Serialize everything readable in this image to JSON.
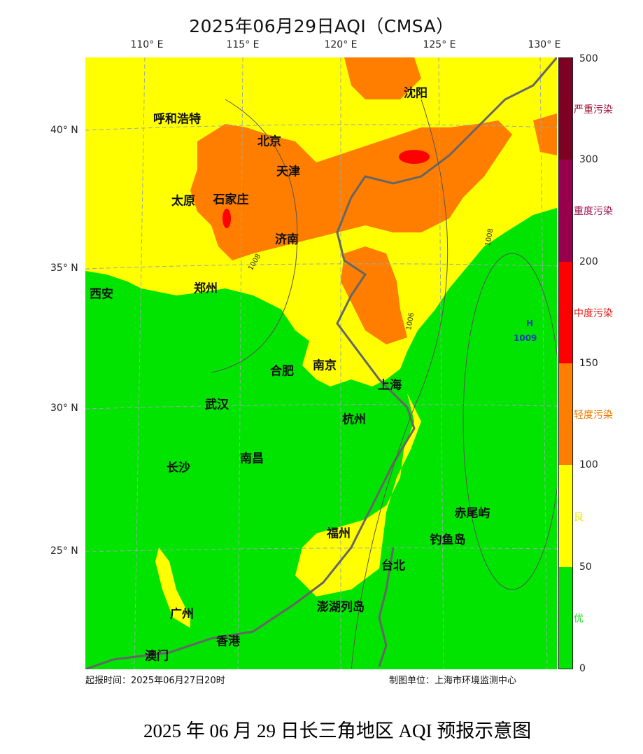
{
  "title": "2025年06月29日AQI（CMSA）",
  "longitude_labels": [
    "110° E",
    "115° E",
    "120° E",
    "125° E",
    "130° E"
  ],
  "latitude_labels": [
    "40° N",
    "35° N",
    "30° N",
    "25° N"
  ],
  "cities": [
    "呼和浩特",
    "北京",
    "天津",
    "太原",
    "石家庄",
    "济南",
    "沈阳",
    "西安",
    "郑州",
    "合肥",
    "南京",
    "上海",
    "武汉",
    "杭州",
    "长沙",
    "南昌",
    "福州",
    "台北",
    "赤尾屿",
    "钓鱼岛",
    "澎湖列岛",
    "广州",
    "香港",
    "澳门"
  ],
  "pressure": {
    "high_marker": "H",
    "high_value": "1009",
    "isobar_labels": [
      "1008",
      "1006",
      "1008"
    ]
  },
  "colorbar": {
    "ticks": [
      "500",
      "300",
      "200",
      "150",
      "100",
      "50",
      "0"
    ],
    "categories": [
      {
        "label": "严重污染",
        "range": [
          300,
          500
        ],
        "color": "#7e0023"
      },
      {
        "label": "重度污染",
        "range": [
          200,
          300
        ],
        "color": "#99004c"
      },
      {
        "label": "中度污染",
        "range": [
          150,
          200
        ],
        "color": "#ff0000"
      },
      {
        "label": "轻度污染",
        "range": [
          100,
          150
        ],
        "color": "#ff7e00"
      },
      {
        "label": "良",
        "range": [
          50,
          100
        ],
        "color": "#ffff00"
      },
      {
        "label": "优",
        "range": [
          0,
          50
        ],
        "color": "#00e400"
      }
    ]
  },
  "footer": {
    "issue_time": "起报时间：2025年06月27日20时",
    "producer": "制图单位：上海市环境监测中心"
  },
  "caption": "2025 年 06 月 29 日长三角地区 AQI 预报示意图"
}
